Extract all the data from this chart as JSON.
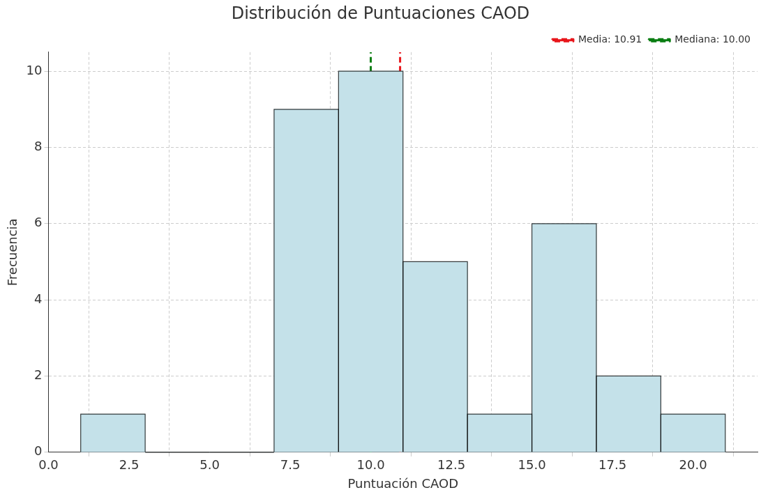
{
  "chart_data": {
    "type": "histogram",
    "title": "Distribución de Puntuaciones CAOD",
    "xlabel": "Puntuación CAOD",
    "ylabel": "Frecuencia",
    "bins": [
      1,
      3,
      5,
      7,
      9,
      11,
      13,
      15,
      17,
      19,
      21
    ],
    "values": [
      1,
      0,
      0,
      9,
      10,
      5,
      1,
      6,
      2,
      1
    ],
    "color": "#c4e1e9",
    "xlim": [
      0,
      22
    ],
    "xticks": [
      {
        "value": 0,
        "label": "0.0"
      },
      {
        "value": 2.5,
        "label": "2.5"
      },
      {
        "value": 5,
        "label": "5.0"
      },
      {
        "value": 7.5,
        "label": "7.5"
      },
      {
        "value": 10,
        "label": "10.0"
      },
      {
        "value": 12.5,
        "label": "12.5"
      },
      {
        "value": 15,
        "label": "15.0"
      },
      {
        "value": 17.5,
        "label": "17.5"
      },
      {
        "value": 20,
        "label": "20.0"
      }
    ],
    "ylim": [
      0,
      10.5
    ],
    "yticks": [
      0,
      2,
      4,
      6,
      8,
      10
    ],
    "grid": true,
    "legend": "top right",
    "ref_lines": [
      {
        "axis": "x",
        "value": 10.91,
        "label": "Media: 10.91",
        "color": "#e8161b",
        "line_style": "dashed"
      },
      {
        "axis": "x",
        "value": 10.0,
        "label": "Mediana: 10.00",
        "color": "#0a7d12",
        "line_style": "dashed"
      }
    ]
  }
}
